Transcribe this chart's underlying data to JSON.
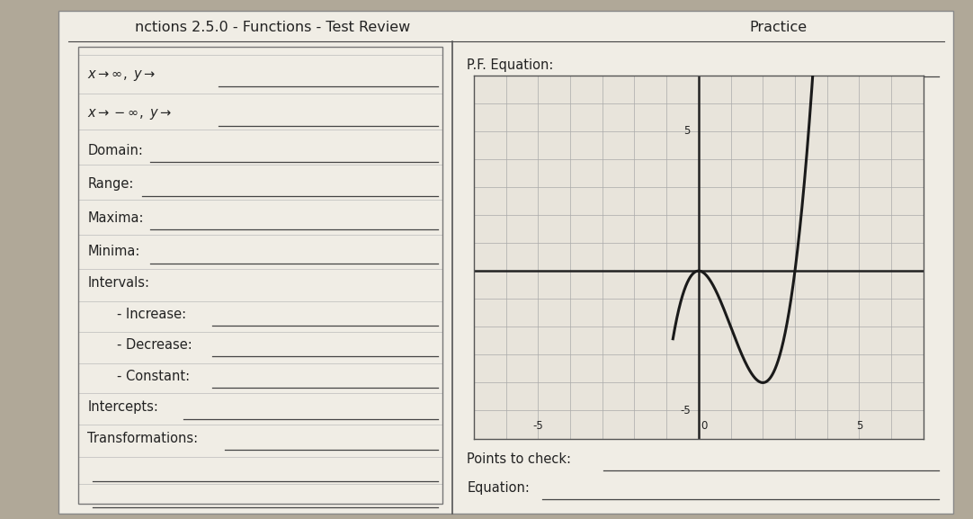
{
  "title": "nctions 2.5.0 - Functions - Test Review",
  "practice_label": "Practice",
  "bg_color": "#b0a898",
  "paper_color": "#f0ede5",
  "left_box_color": "#e8e4db",
  "line_color": "#444444",
  "text_color": "#222222",
  "divider_color": "#555555",
  "graph": {
    "bg_color": "#e8e4db",
    "grid_color": "#aaaaaa",
    "axis_color": "#222222",
    "curve_color": "#1a1a1a",
    "xlim": [
      -7,
      7
    ],
    "ylim": [
      -6,
      7
    ],
    "xtick_labels": [
      [
        -5,
        "-5"
      ],
      [
        0,
        "0"
      ],
      [
        5,
        "5"
      ]
    ],
    "ytick_labels": [
      [
        -5,
        "-5"
      ],
      [
        5,
        "5"
      ]
    ]
  }
}
